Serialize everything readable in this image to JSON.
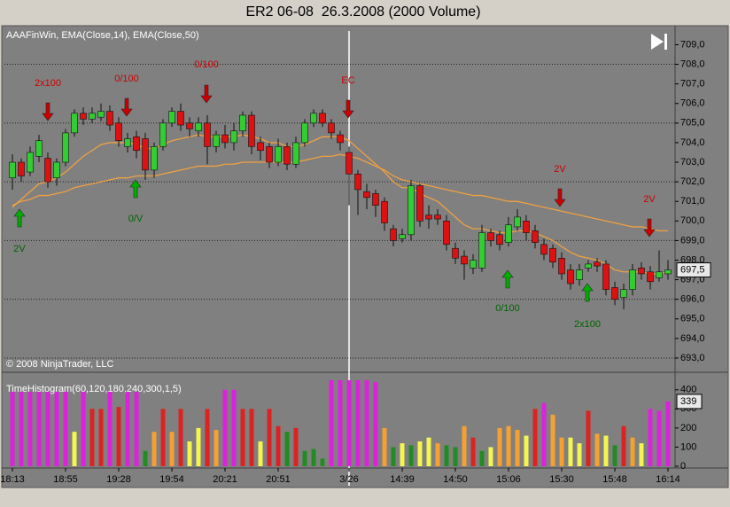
{
  "chart_data": [
    {
      "type": "candlestick",
      "title": "ER2 06-08  26.3.2008 (2000 Volume)",
      "indicator_label": "AAAFinWin, EMA(Close,14), EMA(Close,50)",
      "copyright": "© 2008 NinjaTrader, LLC",
      "up_color": "#33cc33",
      "down_color": "#dd1111",
      "open": [
        702.2,
        703.0,
        702.5,
        703.3,
        703.2,
        702.2,
        703.0,
        704.5,
        705.5,
        705.2,
        705.3,
        705.6,
        705.0,
        703.8,
        704.3,
        704.2,
        702.6,
        703.8,
        705.0,
        705.6,
        705.0,
        704.6,
        705.0,
        703.8,
        704.4,
        704.0,
        704.6,
        705.4,
        704.0,
        703.8,
        703.0,
        703.8,
        702.9,
        704.0,
        705.0,
        705.5,
        705.0,
        704.4,
        703.5,
        702.4,
        701.5,
        701.4,
        701.0,
        699.6,
        699.1,
        699.3,
        701.8,
        700.3,
        700.3,
        700.0,
        698.6,
        698.2,
        697.6,
        697.6,
        699.4,
        699.3,
        698.9,
        699.7,
        700.0,
        699.5,
        698.8,
        698.6,
        698.1,
        697.5,
        697.0,
        697.6,
        697.9,
        697.8,
        696.6,
        696.1,
        696.5,
        697.6,
        697.4,
        697.1,
        697.3
      ],
      "high": [
        703.4,
        703.2,
        703.8,
        704.4,
        703.5,
        703.2,
        704.7,
        705.7,
        705.8,
        705.8,
        706.0,
        705.9,
        705.3,
        704.5,
        704.6,
        704.5,
        704.0,
        705.2,
        705.8,
        706.0,
        705.3,
        705.3,
        705.4,
        704.6,
        704.9,
        705.0,
        705.6,
        705.6,
        704.3,
        704.0,
        704.2,
        704.0,
        704.3,
        705.2,
        705.7,
        705.7,
        705.2,
        704.6,
        703.8,
        702.6,
        701.9,
        701.6,
        701.2,
        699.8,
        699.6,
        702.1,
        701.9,
        700.8,
        700.6,
        700.3,
        698.9,
        698.5,
        698.3,
        699.8,
        699.6,
        699.5,
        700.2,
        700.6,
        700.3,
        699.8,
        699.1,
        698.8,
        698.4,
        697.8,
        697.8,
        698.0,
        698.1,
        698.0,
        696.9,
        696.8,
        697.8,
        697.9,
        697.7,
        698.5,
        698.0
      ],
      "low": [
        701.6,
        702.0,
        702.3,
        703.0,
        701.7,
        701.8,
        702.8,
        704.3,
        704.9,
        705.0,
        705.1,
        704.6,
        703.8,
        703.5,
        703.2,
        702.1,
        702.2,
        703.6,
        704.8,
        704.6,
        704.3,
        704.3,
        702.9,
        703.5,
        703.7,
        703.6,
        704.3,
        703.4,
        703.1,
        702.7,
        702.8,
        702.6,
        702.7,
        703.8,
        704.8,
        704.8,
        704.2,
        703.6,
        700.8,
        700.3,
        700.6,
        700.2,
        699.5,
        698.7,
        698.9,
        699.0,
        699.7,
        699.6,
        699.8,
        698.5,
        697.8,
        697.0,
        697.3,
        697.4,
        698.7,
        698.5,
        698.7,
        699.5,
        699.0,
        698.6,
        698.0,
        697.6,
        697.0,
        696.5,
        696.7,
        697.4,
        697.4,
        696.2,
        695.7,
        695.5,
        696.2,
        697.0,
        696.5,
        696.9,
        697.0
      ],
      "close": [
        703.0,
        702.3,
        703.5,
        704.1,
        702.0,
        703.0,
        704.5,
        705.5,
        705.2,
        705.5,
        705.6,
        704.9,
        704.1,
        704.2,
        703.6,
        702.6,
        703.8,
        705.0,
        705.6,
        704.9,
        704.7,
        705.0,
        703.8,
        704.4,
        704.0,
        704.6,
        705.4,
        703.8,
        703.6,
        703.0,
        703.8,
        702.9,
        704.0,
        705.0,
        705.5,
        705.0,
        704.5,
        704.0,
        702.4,
        701.6,
        701.2,
        700.8,
        699.9,
        699.0,
        699.3,
        701.8,
        700.0,
        700.1,
        700.1,
        698.8,
        698.1,
        697.8,
        698.0,
        699.4,
        699.0,
        698.8,
        699.8,
        700.2,
        699.4,
        698.9,
        698.3,
        697.9,
        697.3,
        696.8,
        697.5,
        697.8,
        697.7,
        696.5,
        696.0,
        696.5,
        697.5,
        697.3,
        696.9,
        697.4,
        697.5
      ],
      "overlays": [
        {
          "color": "#f0a040",
          "values": [
            700.7,
            701.1,
            701.5,
            701.9,
            702.0,
            702.2,
            702.5,
            702.9,
            703.3,
            703.6,
            703.9,
            704.0,
            704.0,
            704.0,
            703.9,
            703.7,
            703.7,
            703.9,
            704.1,
            704.2,
            704.3,
            704.4,
            704.3,
            704.3,
            704.3,
            704.3,
            704.4,
            704.3,
            704.2,
            704.0,
            704.0,
            703.8,
            703.8,
            703.9,
            704.1,
            704.3,
            704.3,
            704.3,
            704.1,
            703.7,
            703.3,
            702.9,
            702.5,
            702.0,
            701.7,
            701.7,
            701.4,
            701.2,
            701.0,
            700.6,
            700.2,
            699.8,
            699.6,
            699.6,
            699.5,
            699.4,
            699.4,
            699.5,
            699.5,
            699.4,
            699.2,
            699.0,
            698.7,
            698.4,
            698.2,
            698.1,
            698.0,
            697.8,
            697.5,
            697.4,
            697.4,
            697.4,
            697.3,
            697.3,
            697.4
          ]
        },
        {
          "color": "#f0a040",
          "values": [
            700.8,
            701.0,
            701.1,
            701.3,
            701.3,
            701.4,
            701.5,
            701.7,
            701.8,
            701.9,
            702.0,
            702.1,
            702.2,
            702.2,
            702.3,
            702.3,
            702.3,
            702.4,
            702.5,
            702.6,
            702.7,
            702.8,
            702.8,
            702.8,
            702.9,
            702.9,
            703.0,
            703.0,
            703.0,
            703.0,
            703.0,
            703.0,
            703.0,
            703.1,
            703.2,
            703.3,
            703.3,
            703.4,
            703.3,
            703.2,
            703.0,
            702.8,
            702.6,
            702.3,
            702.1,
            702.0,
            701.9,
            701.8,
            701.7,
            701.6,
            701.5,
            701.4,
            701.3,
            701.3,
            701.2,
            701.1,
            701.0,
            701.0,
            700.9,
            700.8,
            700.7,
            700.6,
            700.5,
            700.4,
            700.3,
            700.2,
            700.1,
            700.0,
            699.9,
            699.8,
            699.7,
            699.7,
            699.6,
            699.5,
            699.5
          ]
        }
      ],
      "annotations": [
        {
          "text": "2x100",
          "color": "#cc0000",
          "direction": "down"
        },
        {
          "text": "0/100",
          "color": "#cc0000",
          "direction": "down"
        },
        {
          "text": "0/100",
          "color": "#cc0000",
          "direction": "down"
        },
        {
          "text": "EC",
          "color": "#cc0000",
          "direction": "down"
        },
        {
          "text": "2V",
          "color": "#cc0000",
          "direction": "down"
        },
        {
          "text": "2V",
          "color": "#cc0000",
          "direction": "down"
        },
        {
          "text": "2V",
          "color": "#006400",
          "direction": "up"
        },
        {
          "text": "0/V",
          "color": "#006400",
          "direction": "up"
        },
        {
          "text": "0/100",
          "color": "#006400",
          "direction": "up"
        },
        {
          "text": "2x100",
          "color": "#006400",
          "direction": "up"
        }
      ],
      "last_price": {
        "value": 697.5,
        "label": "697,5"
      },
      "ylim": [
        692.5,
        709.7
      ],
      "yticks": [
        {
          "value": 693,
          "label": "693,0"
        },
        {
          "value": 694,
          "label": "694,0"
        },
        {
          "value": 695,
          "label": "695,0"
        },
        {
          "value": 696,
          "label": "696,0"
        },
        {
          "value": 697,
          "label": "697,0"
        },
        {
          "value": 698,
          "label": "698,0"
        },
        {
          "value": 699,
          "label": "699,0"
        },
        {
          "value": 700,
          "label": "700,0"
        },
        {
          "value": 701,
          "label": "701,0"
        },
        {
          "value": 702,
          "label": "702,0"
        },
        {
          "value": 703,
          "label": "703,0"
        },
        {
          "value": 704,
          "label": "704,0"
        },
        {
          "value": 705,
          "label": "705,0"
        },
        {
          "value": 706,
          "label": "706,0"
        },
        {
          "value": 707,
          "label": "707,0"
        },
        {
          "value": 708,
          "label": "708,0"
        },
        {
          "value": 709,
          "label": "709,0"
        }
      ],
      "grid": true
    },
    {
      "type": "bar",
      "title": "TimeHistogram(60,120,180,240,300,1,5)",
      "categories": [
        "18:13",
        null,
        null,
        null,
        null,
        null,
        "18:55",
        null,
        null,
        null,
        null,
        null,
        "19:28",
        null,
        null,
        null,
        null,
        null,
        "19:54",
        null,
        null,
        null,
        null,
        null,
        "20:21",
        null,
        null,
        null,
        null,
        null,
        "20:51",
        null,
        null,
        null,
        null,
        null,
        null,
        null,
        "3/26",
        null,
        null,
        null,
        null,
        null,
        "14:39",
        null,
        null,
        null,
        null,
        null,
        "14:50",
        null,
        null,
        null,
        null,
        null,
        "15:06",
        null,
        null,
        null,
        null,
        null,
        "15:30",
        null,
        null,
        null,
        null,
        null,
        "15:48",
        null,
        null,
        null,
        null,
        null,
        "16:14"
      ],
      "values": [
        390,
        390,
        390,
        390,
        390,
        390,
        390,
        180,
        390,
        300,
        300,
        390,
        310,
        390,
        390,
        80,
        180,
        300,
        180,
        300,
        130,
        200,
        300,
        190,
        400,
        400,
        300,
        300,
        130,
        300,
        210,
        180,
        200,
        80,
        90,
        40,
        450,
        450,
        450,
        450,
        450,
        440,
        200,
        100,
        120,
        110,
        130,
        150,
        120,
        110,
        100,
        210,
        150,
        80,
        100,
        200,
        210,
        190,
        160,
        300,
        330,
        270,
        150,
        150,
        120,
        290,
        170,
        160,
        110,
        210,
        150,
        120,
        300,
        290,
        339
      ],
      "colors": [
        "#dd22dd",
        "#dd22dd",
        "#dd22dd",
        "#dd22dd",
        "#dd22dd",
        "#dd22dd",
        "#dd22dd",
        "#f5f550",
        "#dd22dd",
        "#dd2222",
        "#dd2222",
        "#dd22dd",
        "#dd2222",
        "#dd22dd",
        "#dd22dd",
        "#228b22",
        "#f5a030",
        "#dd2222",
        "#f5a030",
        "#dd2222",
        "#f5f550",
        "#f5f550",
        "#dd2222",
        "#f5a030",
        "#dd22dd",
        "#dd22dd",
        "#dd2222",
        "#dd2222",
        "#f5f550",
        "#dd2222",
        "#dd2222",
        "#228b22",
        "#dd2222",
        "#228b22",
        "#228b22",
        "#228b22",
        "#dd22dd",
        "#dd22dd",
        "#dd22dd",
        "#dd22dd",
        "#dd22dd",
        "#dd22dd",
        "#f5a030",
        "#228b22",
        "#f5f550",
        "#228b22",
        "#f5f550",
        "#f5f550",
        "#f5a030",
        "#228b22",
        "#228b22",
        "#f5a030",
        "#dd2222",
        "#228b22",
        "#f5f550",
        "#f5a030",
        "#f5a030",
        "#f5a030",
        "#f5f550",
        "#dd2222",
        "#dd22dd",
        "#f5a030",
        "#f5a030",
        "#f5f550",
        "#f5f550",
        "#dd2222",
        "#f5a030",
        "#f5f550",
        "#228b22",
        "#dd2222",
        "#f5a030",
        "#f5f550",
        "#dd22dd",
        "#dd22dd",
        "#dd22dd"
      ],
      "last_value": 339,
      "ylim": [
        0,
        450
      ],
      "yticks": [
        0,
        100,
        200,
        300,
        400
      ]
    }
  ]
}
